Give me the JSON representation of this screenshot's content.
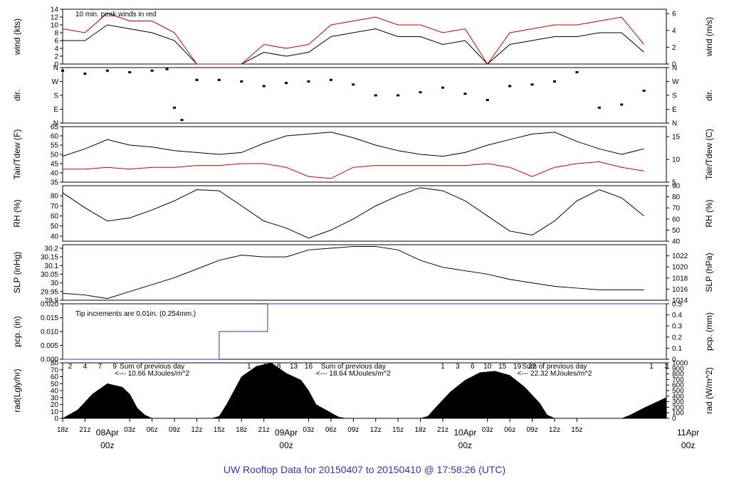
{
  "title": "UW Rooftop Data for 20150407  to  20150410 @ 17:58:26  (UTC)",
  "time_axis": {
    "hour_labels": [
      "18z",
      "21z",
      "03z",
      "06z",
      "09z",
      "12z",
      "15z",
      "18z",
      "21z",
      "03z",
      "06z",
      "09z",
      "12z",
      "15z",
      "18z",
      "21z",
      "03z",
      "06z",
      "09z",
      "12z",
      "15z"
    ],
    "day_labels": [
      {
        "date": "08Apr",
        "hour": "00z"
      },
      {
        "date": "09Apr",
        "hour": "00z"
      },
      {
        "date": "10Apr",
        "hour": "00z"
      },
      {
        "date": "11Apr",
        "hour": "00z"
      }
    ]
  },
  "chart_data": [
    {
      "type": "line",
      "id": "wind",
      "ylabel_left": "wind (kts)",
      "ylabel_right": "wind (m/s)",
      "ylim": [
        0,
        14
      ],
      "yticks_left": [
        0,
        2,
        4,
        6,
        8,
        10,
        12,
        14
      ],
      "yticks_right": [
        0,
        2,
        4,
        6
      ],
      "annotation": "10 min. peak winds in red",
      "series": [
        {
          "name": "wind",
          "color": "#000000",
          "x": [
            0,
            3,
            6,
            9,
            12,
            15,
            18,
            21,
            24,
            27,
            30,
            33,
            36,
            39,
            42,
            45,
            48,
            51,
            54,
            57,
            60,
            63,
            66,
            69,
            72,
            75,
            78
          ],
          "y": [
            6,
            6,
            10,
            9,
            8,
            6,
            0,
            0,
            0,
            3,
            2,
            3,
            7,
            8,
            9,
            7,
            7,
            5,
            6,
            0,
            5,
            6,
            7,
            7,
            8,
            8,
            3
          ]
        },
        {
          "name": "peak",
          "color": "#cc0000",
          "x": [
            0,
            3,
            6,
            9,
            12,
            15,
            18,
            21,
            24,
            27,
            30,
            33,
            36,
            39,
            42,
            45,
            48,
            51,
            54,
            57,
            60,
            63,
            66,
            69,
            72,
            75,
            78
          ],
          "y": [
            9,
            8,
            13,
            11,
            11,
            8,
            0,
            0,
            0,
            5,
            4,
            5,
            10,
            11,
            12,
            10,
            10,
            8,
            9,
            0,
            8,
            9,
            10,
            10,
            11,
            12,
            5
          ]
        }
      ]
    },
    {
      "type": "scatter",
      "id": "dir",
      "ylabel_left": "dir.",
      "ylabel_right": "dir.",
      "ylim": [
        0,
        360
      ],
      "yticks_left": [
        "N",
        "E",
        "S",
        "W",
        "N"
      ],
      "yticks_right": [
        "N",
        "E",
        "S",
        "W",
        "N"
      ],
      "series": [
        {
          "name": "dir",
          "color": "#000000",
          "x": [
            0,
            3,
            6,
            9,
            12,
            14,
            15,
            16,
            18,
            21,
            24,
            27,
            30,
            33,
            36,
            39,
            42,
            45,
            48,
            51,
            54,
            57,
            60,
            63,
            66,
            69,
            72,
            75,
            78
          ],
          "y": [
            340,
            320,
            340,
            330,
            340,
            350,
            100,
            20,
            280,
            280,
            270,
            240,
            260,
            270,
            280,
            250,
            180,
            180,
            200,
            230,
            190,
            150,
            240,
            250,
            270,
            330,
            100,
            120,
            210
          ]
        }
      ]
    },
    {
      "type": "line",
      "id": "temp",
      "ylabel_left": "Tair/Tdew (F)",
      "ylabel_right": "Tair/Tdew (C)",
      "ylim": [
        35,
        65
      ],
      "yticks_left": [
        35,
        40,
        45,
        50,
        55,
        60,
        65
      ],
      "yticks_right": [
        5,
        10,
        15
      ],
      "series": [
        {
          "name": "Tair",
          "color": "#000000",
          "x": [
            0,
            3,
            6,
            9,
            12,
            15,
            18,
            21,
            24,
            27,
            30,
            33,
            36,
            39,
            42,
            45,
            48,
            51,
            54,
            57,
            60,
            63,
            66,
            69,
            72,
            75,
            78
          ],
          "y": [
            49,
            53,
            58,
            55,
            54,
            52,
            51,
            50,
            51,
            56,
            60,
            61,
            62,
            59,
            55,
            52,
            50,
            49,
            51,
            55,
            58,
            61,
            62,
            57,
            53,
            50,
            53
          ]
        },
        {
          "name": "Tdew",
          "color": "#dd0000",
          "x": [
            0,
            3,
            6,
            9,
            12,
            15,
            18,
            21,
            24,
            27,
            30,
            33,
            36,
            39,
            42,
            45,
            48,
            51,
            54,
            57,
            60,
            63,
            66,
            69,
            72,
            75,
            78
          ],
          "y": [
            42,
            42,
            43,
            42,
            43,
            43,
            44,
            44,
            45,
            45,
            43,
            38,
            37,
            43,
            44,
            44,
            44,
            44,
            44,
            45,
            43,
            38,
            43,
            45,
            46,
            43,
            41
          ]
        }
      ]
    },
    {
      "type": "line",
      "id": "rh",
      "ylabel_left": "RH (%)",
      "ylabel_right": "RH (%)",
      "ylim": [
        35,
        90
      ],
      "yticks_left": [
        40,
        50,
        60,
        70,
        80
      ],
      "yticks_right": [
        40,
        50,
        60,
        70,
        80,
        90
      ],
      "series": [
        {
          "name": "RH",
          "color": "#000000",
          "x": [
            0,
            3,
            6,
            9,
            12,
            15,
            18,
            21,
            24,
            27,
            30,
            33,
            36,
            39,
            42,
            45,
            48,
            51,
            54,
            57,
            60,
            63,
            66,
            69,
            72,
            75,
            78
          ],
          "y": [
            83,
            68,
            55,
            58,
            66,
            75,
            86,
            85,
            70,
            55,
            48,
            38,
            46,
            57,
            70,
            80,
            88,
            85,
            75,
            60,
            45,
            41,
            55,
            75,
            86,
            78,
            60
          ]
        }
      ]
    },
    {
      "type": "line",
      "id": "slp",
      "ylabel_left": "SLP (inHg)",
      "ylabel_right": "SLP (hPa)",
      "ylim": [
        29.9,
        30.22
      ],
      "yticks_left": [
        29.9,
        29.95,
        30.0,
        30.05,
        30.1,
        30.15,
        30.2
      ],
      "yticks_right": [
        1014,
        1016,
        1018,
        1020,
        1022
      ],
      "series": [
        {
          "name": "SLP",
          "color": "#000000",
          "x": [
            0,
            3,
            6,
            9,
            12,
            15,
            18,
            21,
            24,
            27,
            30,
            33,
            36,
            39,
            42,
            45,
            48,
            51,
            54,
            57,
            60,
            63,
            66,
            69,
            72,
            75,
            78
          ],
          "y": [
            29.94,
            29.93,
            29.91,
            29.95,
            29.99,
            30.03,
            30.08,
            30.13,
            30.16,
            30.15,
            30.15,
            30.19,
            30.2,
            30.21,
            30.21,
            30.19,
            30.13,
            30.09,
            30.07,
            30.05,
            30.02,
            30.0,
            29.98,
            29.97,
            29.96,
            29.96,
            29.96
          ]
        }
      ]
    },
    {
      "type": "line",
      "id": "pcp",
      "ylabel_left": "pcp. (in)",
      "ylabel_right": "pcp. (mm)",
      "ylim": [
        0,
        0.02
      ],
      "yticks_left": [
        "0.000",
        "0.005",
        "0.010",
        "0.015",
        "0.020"
      ],
      "yticks_right": [
        "0",
        "0.1",
        "0.2",
        "0.3",
        "0.4",
        "0.5"
      ],
      "annotation": "Tip increments are 0.01in. (0.254mm.)",
      "series": [
        {
          "name": "pcp",
          "color": "#3333cc",
          "x": [
            0,
            21,
            21,
            27.5,
            27.5,
            81
          ],
          "y": [
            0,
            0,
            0.01,
            0.01,
            0.02,
            0.02
          ]
        }
      ]
    },
    {
      "type": "area",
      "id": "rad",
      "ylabel_left": "rad(Lgly/hr)",
      "ylabel_right": "rad (W/m^2)",
      "ylim": [
        0,
        80
      ],
      "yticks_left": [
        0,
        10,
        20,
        30,
        40,
        50,
        60,
        70,
        80
      ],
      "yticks_right": [
        0,
        100,
        200,
        300,
        400,
        500,
        600,
        700,
        800,
        900,
        1000
      ],
      "top_hour_labels": [
        {
          "x": 1,
          "text": "2"
        },
        {
          "x": 3,
          "text": "4"
        },
        {
          "x": 5,
          "text": "7"
        },
        {
          "x": 7,
          "text": "9"
        },
        {
          "x": 25,
          "text": "1"
        },
        {
          "x": 27,
          "text": "4"
        },
        {
          "x": 29,
          "text": "8"
        },
        {
          "x": 31,
          "text": "13"
        },
        {
          "x": 33,
          "text": "16"
        },
        {
          "x": 51,
          "text": "1"
        },
        {
          "x": 53,
          "text": "3"
        },
        {
          "x": 55,
          "text": "6"
        },
        {
          "x": 57,
          "text": "10"
        },
        {
          "x": 59,
          "text": "15"
        },
        {
          "x": 61,
          "text": "19"
        },
        {
          "x": 63,
          "text": "22"
        },
        {
          "x": 79,
          "text": "1"
        },
        {
          "x": 81,
          "text": "3"
        }
      ],
      "annotations": [
        {
          "x": 12,
          "line1": "Sum of previous day",
          "line2": "<--- 10.66  MJoules/m^2"
        },
        {
          "x": 39,
          "line1": "Sum of previous day",
          "line2": "<--- 18.64  MJoules/m^2"
        },
        {
          "x": 66,
          "line1": "Sum of previous day",
          "line2": "<--- 22.32  MJoules/m^2"
        }
      ],
      "series": [
        {
          "name": "rad",
          "color": "#000000",
          "x": [
            0,
            2,
            4,
            6,
            8,
            9,
            10,
            11,
            12,
            20,
            21,
            22,
            24,
            26,
            28,
            30,
            32,
            33,
            34,
            36,
            37,
            38,
            48,
            49,
            50,
            52,
            54,
            56,
            58,
            60,
            62,
            64,
            65,
            66,
            75,
            76,
            78,
            80,
            81
          ],
          "y": [
            0,
            12,
            35,
            50,
            45,
            35,
            15,
            5,
            0,
            0,
            3,
            20,
            60,
            75,
            80,
            65,
            55,
            40,
            20,
            8,
            2,
            0,
            0,
            3,
            15,
            38,
            55,
            66,
            68,
            62,
            45,
            22,
            5,
            0,
            0,
            4,
            15,
            25,
            30
          ]
        }
      ]
    }
  ]
}
